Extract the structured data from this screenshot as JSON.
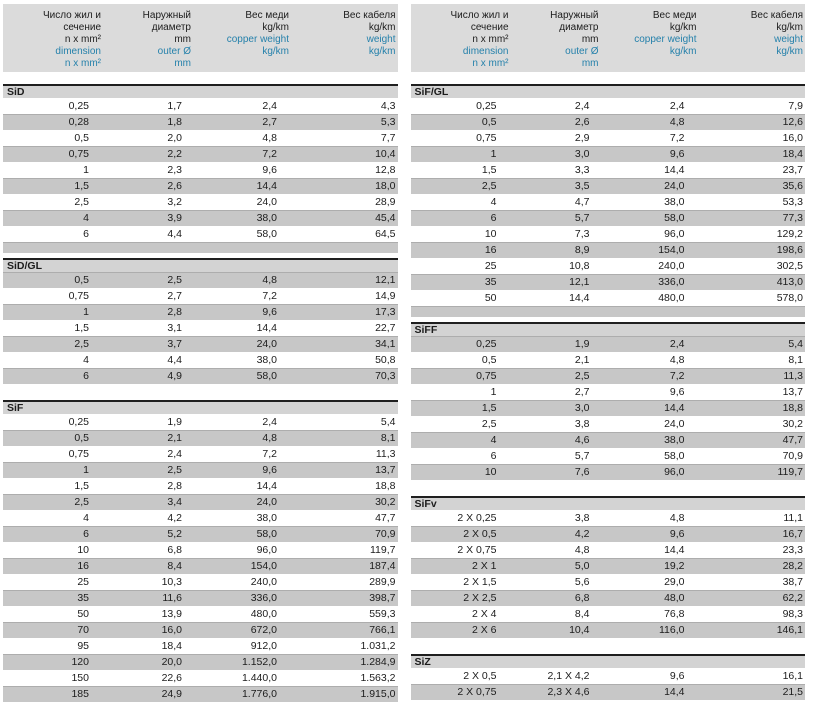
{
  "colors": {
    "header_bg": "#dbdbdb",
    "stripe": "#c7c7c7",
    "section_bar_bg": "#d3d3d3",
    "blue_text": "#2581ab",
    "black_text": "#1c1c1c"
  },
  "column_header": {
    "columns": [
      {
        "id": "dimension",
        "black": [
          "Число жил и",
          "сечение",
          "n x mm²"
        ],
        "blue": [
          "dimension",
          "n x mm²"
        ]
      },
      {
        "id": "outer-diameter",
        "black": [
          "Наружный",
          "диаметр",
          "mm"
        ],
        "blue": [
          "outer Ø",
          "mm"
        ]
      },
      {
        "id": "copper-weight",
        "black": [
          "Вес меди",
          "kg/km"
        ],
        "blue": [
          "copper weight",
          "kg/km"
        ]
      },
      {
        "id": "cable-weight",
        "black": [
          "Вес кабеля",
          "kg/km"
        ],
        "blue": [
          "weight",
          "kg/km"
        ]
      }
    ]
  },
  "left_column": {
    "tables": [
      {
        "name": "SiD",
        "first_stripe": "white",
        "spacer_after": "gray",
        "rows": [
          [
            "0,25",
            "1,7",
            "2,4",
            "4,3"
          ],
          [
            "0,28",
            "1,8",
            "2,7",
            "5,3"
          ],
          [
            "0,5",
            "2,0",
            "4,8",
            "7,7"
          ],
          [
            "0,75",
            "2,2",
            "7,2",
            "10,4"
          ],
          [
            "1",
            "2,3",
            "9,6",
            "12,8"
          ],
          [
            "1,5",
            "2,6",
            "14,4",
            "18,0"
          ],
          [
            "2,5",
            "3,2",
            "24,0",
            "28,9"
          ],
          [
            "4",
            "3,9",
            "38,0",
            "45,4"
          ],
          [
            "6",
            "4,4",
            "58,0",
            "64,5"
          ]
        ]
      },
      {
        "name": "SiD/GL",
        "first_stripe": "gray",
        "spacer_after": "white",
        "rows": [
          [
            "0,5",
            "2,5",
            "4,8",
            "12,1"
          ],
          [
            "0,75",
            "2,7",
            "7,2",
            "14,9"
          ],
          [
            "1",
            "2,8",
            "9,6",
            "17,3"
          ],
          [
            "1,5",
            "3,1",
            "14,4",
            "22,7"
          ],
          [
            "2,5",
            "3,7",
            "24,0",
            "34,1"
          ],
          [
            "4",
            "4,4",
            "38,0",
            "50,8"
          ],
          [
            "6",
            "4,9",
            "58,0",
            "70,3"
          ]
        ]
      },
      {
        "name": "SiF",
        "first_stripe": "white",
        "spacer_after": "none",
        "rows": [
          [
            "0,25",
            "1,9",
            "2,4",
            "5,4"
          ],
          [
            "0,5",
            "2,1",
            "4,8",
            "8,1"
          ],
          [
            "0,75",
            "2,4",
            "7,2",
            "11,3"
          ],
          [
            "1",
            "2,5",
            "9,6",
            "13,7"
          ],
          [
            "1,5",
            "2,8",
            "14,4",
            "18,8"
          ],
          [
            "2,5",
            "3,4",
            "24,0",
            "30,2"
          ],
          [
            "4",
            "4,2",
            "38,0",
            "47,7"
          ],
          [
            "6",
            "5,2",
            "58,0",
            "70,9"
          ],
          [
            "10",
            "6,8",
            "96,0",
            "119,7"
          ],
          [
            "16",
            "8,4",
            "154,0",
            "187,4"
          ],
          [
            "25",
            "10,3",
            "240,0",
            "289,9"
          ],
          [
            "35",
            "11,6",
            "336,0",
            "398,7"
          ],
          [
            "50",
            "13,9",
            "480,0",
            "559,3"
          ],
          [
            "70",
            "16,0",
            "672,0",
            "766,1"
          ],
          [
            "95",
            "18,4",
            "912,0",
            "1.031,2"
          ],
          [
            "120",
            "20,0",
            "1.152,0",
            "1.284,9"
          ],
          [
            "150",
            "22,6",
            "1.440,0",
            "1.563,2"
          ],
          [
            "185",
            "24,9",
            "1.776,0",
            "1.915,0"
          ]
        ]
      }
    ]
  },
  "right_column": {
    "tables": [
      {
        "name": "SiF/GL",
        "first_stripe": "white",
        "spacer_after": "gray",
        "rows": [
          [
            "0,25",
            "2,4",
            "2,4",
            "7,9"
          ],
          [
            "0,5",
            "2,6",
            "4,8",
            "12,6"
          ],
          [
            "0,75",
            "2,9",
            "7,2",
            "16,0"
          ],
          [
            "1",
            "3,0",
            "9,6",
            "18,4"
          ],
          [
            "1,5",
            "3,3",
            "14,4",
            "23,7"
          ],
          [
            "2,5",
            "3,5",
            "24,0",
            "35,6"
          ],
          [
            "4",
            "4,7",
            "38,0",
            "53,3"
          ],
          [
            "6",
            "5,7",
            "58,0",
            "77,3"
          ],
          [
            "10",
            "7,3",
            "96,0",
            "129,2"
          ],
          [
            "16",
            "8,9",
            "154,0",
            "198,6"
          ],
          [
            "25",
            "10,8",
            "240,0",
            "302,5"
          ],
          [
            "35",
            "12,1",
            "336,0",
            "413,0"
          ],
          [
            "50",
            "14,4",
            "480,0",
            "578,0"
          ]
        ]
      },
      {
        "name": "SiFF",
        "first_stripe": "gray",
        "spacer_after": "white",
        "rows": [
          [
            "0,25",
            "1,9",
            "2,4",
            "5,4"
          ],
          [
            "0,5",
            "2,1",
            "4,8",
            "8,1"
          ],
          [
            "0,75",
            "2,5",
            "7,2",
            "11,3"
          ],
          [
            "1",
            "2,7",
            "9,6",
            "13,7"
          ],
          [
            "1,5",
            "3,0",
            "14,4",
            "18,8"
          ],
          [
            "2,5",
            "3,8",
            "24,0",
            "30,2"
          ],
          [
            "4",
            "4,6",
            "38,0",
            "47,7"
          ],
          [
            "6",
            "5,7",
            "58,0",
            "70,9"
          ],
          [
            "10",
            "7,6",
            "96,0",
            "119,7"
          ]
        ]
      },
      {
        "name": "SiFv",
        "first_stripe": "white",
        "spacer_after": "white",
        "rows": [
          [
            "2 X 0,25",
            "3,8",
            "4,8",
            "11,1"
          ],
          [
            "2 X 0,5",
            "4,2",
            "9,6",
            "16,7"
          ],
          [
            "2 X 0,75",
            "4,8",
            "14,4",
            "23,3"
          ],
          [
            "2 X 1",
            "5,0",
            "19,2",
            "28,2"
          ],
          [
            "2 X 1,5",
            "5,6",
            "29,0",
            "38,7"
          ],
          [
            "2 X 2,5",
            "6,8",
            "48,0",
            "62,2"
          ],
          [
            "2 X 4",
            "8,4",
            "76,8",
            "98,3"
          ],
          [
            "2 X 6",
            "10,4",
            "116,0",
            "146,1"
          ]
        ]
      },
      {
        "name": "SiZ",
        "first_stripe": "white",
        "spacer_after": "none",
        "rows": [
          [
            "2 X 0,5",
            "2,1 X 4,2",
            "9,6",
            "16,1"
          ],
          [
            "2 X 0,75",
            "2,3 X 4,6",
            "14,4",
            "21,5"
          ]
        ]
      }
    ]
  }
}
